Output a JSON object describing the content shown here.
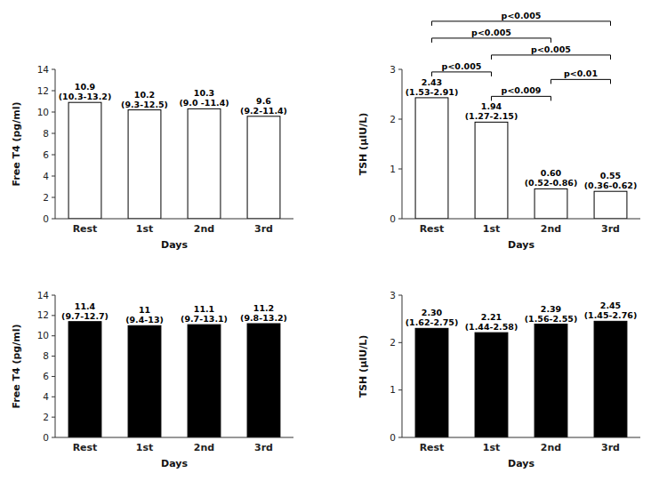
{
  "chart_data": [
    {
      "type": "bar",
      "categories": [
        "Rest",
        "1st",
        "2nd",
        "3rd"
      ],
      "values": [
        10.9,
        10.2,
        10.3,
        9.6
      ],
      "value_labels": [
        "10.9\n(10.3-13.2)",
        "10.2\n(9.3-12.5)",
        "10.3\n(9.0 -11.4)",
        "9.6\n(9.2-11.4)"
      ],
      "data_labels": true,
      "ylabel": "Free T4 (pg/ml)",
      "xlabel": "Days",
      "ylim": [
        0,
        14
      ],
      "yticks": [
        0,
        2,
        4,
        6,
        8,
        10,
        12,
        14
      ],
      "color": "white",
      "grid": false
    },
    {
      "type": "bar",
      "categories": [
        "Rest",
        "1st",
        "2nd",
        "3rd"
      ],
      "values": [
        2.43,
        1.94,
        0.6,
        0.55
      ],
      "value_labels": [
        "2.43\n(1.53-2.91)",
        "1.94\n(1.27-2.15)",
        "0.60\n(0.52-0.86)",
        "0.55\n(0.36-0.62)"
      ],
      "data_labels": true,
      "ylabel": "TSH (μIU/L)",
      "xlabel": "Days",
      "ylim": [
        0,
        3
      ],
      "yticks": [
        0,
        1,
        2,
        3
      ],
      "color": "white",
      "grid": false,
      "annotations": [
        {
          "text": "p<0.009",
          "from": "1st",
          "to": "2nd"
        },
        {
          "text": "p<0.005",
          "from": "Rest",
          "to": "1st"
        },
        {
          "text": "p<0.005",
          "from": "1st",
          "to": "3rd"
        },
        {
          "text": "p<0.005",
          "from": "Rest",
          "to": "2nd"
        },
        {
          "text": "p<0.005",
          "from": "Rest",
          "to": "3rd"
        },
        {
          "text": "p<0.01",
          "from": "2nd",
          "to": "3rd"
        }
      ]
    },
    {
      "type": "bar",
      "categories": [
        "Rest",
        "1st",
        "2nd",
        "3rd"
      ],
      "values": [
        11.4,
        11.0,
        11.1,
        11.2
      ],
      "value_labels": [
        "11.4\n(9.7-12.7)",
        "11\n(9.4-13)",
        "11.1\n(9.7-13.1)",
        "11.2\n(9.8-13.2)"
      ],
      "data_labels": true,
      "ylabel": "Free T4 (pg/ml)",
      "xlabel": "Days",
      "ylim": [
        0,
        14
      ],
      "yticks": [
        0,
        2,
        4,
        6,
        8,
        10,
        12,
        14
      ],
      "color": "black",
      "grid": false
    },
    {
      "type": "bar",
      "categories": [
        "Rest",
        "1st",
        "2nd",
        "3rd"
      ],
      "values": [
        2.3,
        2.21,
        2.39,
        2.45
      ],
      "value_labels": [
        "2.30\n(1.62-2.75)",
        "2.21\n(1.44-2.58)",
        "2.39\n(1.56-2.55)",
        "2.45\n(1.45-2.76)"
      ],
      "data_labels": true,
      "ylabel": "TSH (μIU/L)",
      "xlabel": "Days",
      "ylim": [
        0,
        3
      ],
      "yticks": [
        0,
        1,
        2,
        3
      ],
      "color": "black",
      "grid": false
    }
  ]
}
